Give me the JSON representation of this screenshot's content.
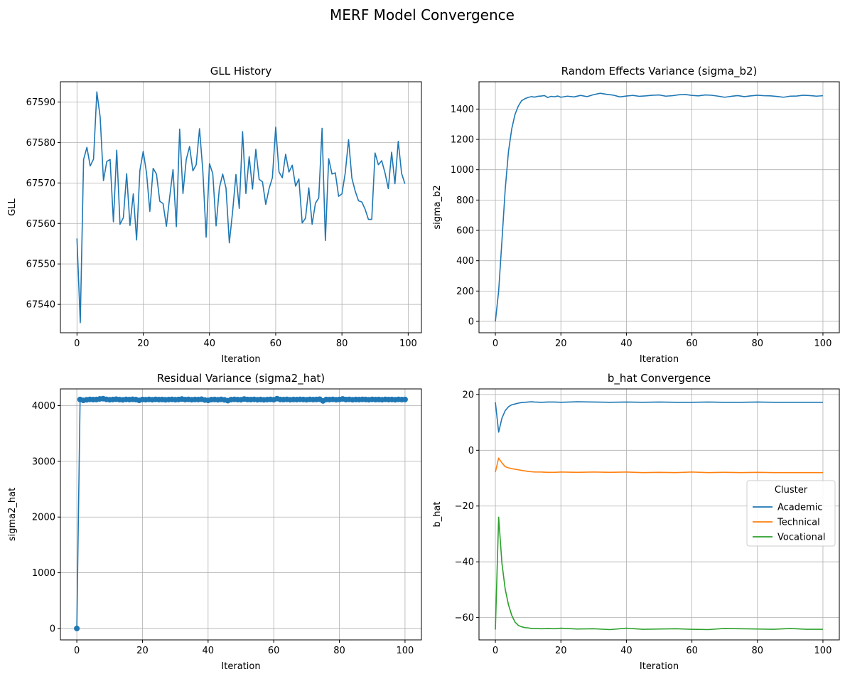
{
  "figure": {
    "title": "MERF Model Convergence"
  },
  "chart_data": [
    {
      "type": "line",
      "title": "GLL History",
      "xlabel": "Iteration",
      "ylabel": "GLL",
      "xlim": [
        -5,
        104
      ],
      "ylim": [
        67533,
        67595
      ],
      "xticks": [
        0,
        20,
        40,
        60,
        80,
        100
      ],
      "yticks": [
        67540,
        67550,
        67560,
        67570,
        67580,
        67590
      ],
      "grid": true,
      "series": [
        {
          "color": "#1f77b4",
          "marker": "none",
          "x": [
            0,
            1,
            2,
            3,
            4,
            5,
            6,
            7,
            8,
            9,
            10,
            11,
            12,
            13,
            14,
            15,
            16,
            17,
            18,
            19,
            20,
            21,
            22,
            23,
            24,
            25,
            26,
            27,
            28,
            29,
            30,
            31,
            32,
            33,
            34,
            35,
            36,
            37,
            38,
            39,
            40,
            41,
            42,
            43,
            44,
            45,
            46,
            47,
            48,
            49,
            50,
            51,
            52,
            53,
            54,
            55,
            56,
            57,
            58,
            59,
            60,
            61,
            62,
            63,
            64,
            65,
            66,
            67,
            68,
            69,
            70,
            71,
            72,
            73,
            74,
            75,
            76,
            77,
            78,
            79,
            80,
            81,
            82,
            83,
            84,
            85,
            86,
            87,
            88,
            89,
            90,
            91,
            92,
            93,
            94,
            95,
            96,
            97,
            98,
            99
          ],
          "values": [
            67556.3,
            67535.5,
            67575.8,
            67578.8,
            67574.2,
            67575.9,
            67592.5,
            67586.3,
            67570.6,
            67575.3,
            67575.8,
            67560.4,
            67578.1,
            67559.8,
            67561.4,
            67572.3,
            67559.5,
            67567.3,
            67555.9,
            67573.1,
            67577.8,
            67572.5,
            67563.0,
            67573.6,
            67572.2,
            67565.5,
            67564.9,
            67559.3,
            67566.6,
            67573.3,
            67559.2,
            67583.3,
            67567.4,
            67575.8,
            67579.0,
            67573.0,
            67574.5,
            67583.4,
            67573.0,
            67556.6,
            67574.8,
            67572.3,
            67559.4,
            67568.8,
            67572.2,
            67568.7,
            67555.2,
            67563.0,
            67572.1,
            67563.7,
            67582.7,
            67567.4,
            67576.5,
            67568.5,
            67578.3,
            67570.9,
            67570.3,
            67564.7,
            67568.6,
            67571.3,
            67583.8,
            67572.7,
            67571.3,
            67577.1,
            67572.7,
            67574.4,
            67569.2,
            67571.0,
            67560.1,
            67561.3,
            67568.8,
            67559.8,
            67565.0,
            67566.3,
            67583.5,
            67555.8,
            67576.0,
            67572.2,
            67572.5,
            67566.7,
            67567.3,
            67572.5,
            67580.7,
            67571.2,
            67568.0,
            67565.6,
            67565.3,
            67563.5,
            67561.0,
            67561.0,
            67577.4,
            67574.5,
            67575.5,
            67572.5,
            67568.6,
            67577.6,
            67569.8,
            67580.3,
            67572.4,
            67569.8
          ]
        }
      ]
    },
    {
      "type": "line",
      "title": "Random Effects Variance (sigma_b2)",
      "xlabel": "Iteration",
      "ylabel": "sigma_b2",
      "xlim": [
        -5,
        105
      ],
      "ylim": [
        -75,
        1580
      ],
      "xticks": [
        0,
        20,
        40,
        60,
        80,
        100
      ],
      "yticks": [
        0,
        200,
        400,
        600,
        800,
        1000,
        1200,
        1400
      ],
      "grid": true,
      "series": [
        {
          "color": "#1f77b4",
          "marker": "none",
          "x": [
            0,
            1,
            2,
            3,
            4,
            5,
            6,
            7,
            8,
            9,
            10,
            11,
            12,
            13,
            14,
            15,
            16,
            17,
            18,
            19,
            20,
            22,
            24,
            26,
            28,
            30,
            32,
            34,
            36,
            38,
            40,
            42,
            44,
            46,
            48,
            50,
            52,
            54,
            56,
            58,
            60,
            62,
            64,
            66,
            68,
            70,
            72,
            74,
            76,
            78,
            80,
            82,
            84,
            86,
            88,
            90,
            92,
            94,
            96,
            98,
            100
          ],
          "values": [
            0,
            200,
            530,
            870,
            1120,
            1270,
            1365,
            1420,
            1455,
            1468,
            1477,
            1482,
            1479,
            1484,
            1486,
            1489,
            1476,
            1484,
            1481,
            1486,
            1478,
            1485,
            1480,
            1490,
            1482,
            1495,
            1504,
            1497,
            1492,
            1480,
            1486,
            1490,
            1484,
            1487,
            1491,
            1493,
            1485,
            1488,
            1494,
            1496,
            1490,
            1487,
            1493,
            1491,
            1485,
            1478,
            1484,
            1489,
            1482,
            1487,
            1491,
            1488,
            1487,
            1483,
            1478,
            1485,
            1486,
            1491,
            1489,
            1485,
            1488
          ]
        }
      ]
    },
    {
      "type": "line",
      "title": "Residual Variance (sigma2_hat)",
      "xlabel": "Iteration",
      "ylabel": "sigma2_hat",
      "xlim": [
        -5,
        105
      ],
      "ylim": [
        -205,
        4300
      ],
      "xticks": [
        0,
        20,
        40,
        60,
        80,
        100
      ],
      "yticks": [
        0,
        1000,
        2000,
        3000,
        4000
      ],
      "grid": true,
      "series": [
        {
          "color": "#1f77b4",
          "marker": "circle",
          "x": [
            0,
            1,
            2,
            3,
            4,
            5,
            6,
            7,
            8,
            9,
            10,
            11,
            12,
            13,
            14,
            15,
            16,
            17,
            18,
            19,
            20,
            21,
            22,
            23,
            24,
            25,
            26,
            27,
            28,
            29,
            30,
            31,
            32,
            33,
            34,
            35,
            36,
            37,
            38,
            39,
            40,
            41,
            42,
            43,
            44,
            45,
            46,
            47,
            48,
            49,
            50,
            51,
            52,
            53,
            54,
            55,
            56,
            57,
            58,
            59,
            60,
            61,
            62,
            63,
            64,
            65,
            66,
            67,
            68,
            69,
            70,
            71,
            72,
            73,
            74,
            75,
            76,
            77,
            78,
            79,
            80,
            81,
            82,
            83,
            84,
            85,
            86,
            87,
            88,
            89,
            90,
            91,
            92,
            93,
            94,
            95,
            96,
            97,
            98,
            99,
            100
          ],
          "values": [
            0,
            4110,
            4095,
            4105,
            4112,
            4108,
            4110,
            4120,
            4125,
            4112,
            4106,
            4110,
            4115,
            4108,
            4104,
            4112,
            4109,
            4113,
            4108,
            4095,
            4110,
            4107,
            4111,
            4106,
            4112,
            4108,
            4110,
            4105,
            4109,
            4112,
            4107,
            4110,
            4118,
            4108,
            4112,
            4106,
            4110,
            4109,
            4115,
            4101,
            4095,
            4108,
            4110,
            4105,
            4112,
            4103,
            4090,
            4108,
            4112,
            4108,
            4106,
            4118,
            4110,
            4108,
            4112,
            4106,
            4110,
            4104,
            4108,
            4112,
            4106,
            4125,
            4110,
            4108,
            4112,
            4106,
            4110,
            4108,
            4112,
            4110,
            4106,
            4112,
            4108,
            4110,
            4115,
            4085,
            4110,
            4108,
            4112,
            4106,
            4110,
            4120,
            4108,
            4112,
            4106,
            4110,
            4108,
            4112,
            4110,
            4106,
            4112,
            4108,
            4110,
            4106,
            4112,
            4108,
            4110,
            4106,
            4112,
            4108,
            4110
          ]
        }
      ]
    },
    {
      "type": "line",
      "title": "b_hat Convergence",
      "xlabel": "Iteration",
      "ylabel": "b_hat",
      "xlim": [
        -5,
        105
      ],
      "ylim": [
        -68,
        22
      ],
      "xticks": [
        0,
        20,
        40,
        60,
        80,
        100
      ],
      "yticks": [
        -60,
        -40,
        -20,
        0,
        20
      ],
      "grid": true,
      "legend": {
        "title": "Cluster",
        "position": "center-right"
      },
      "series": [
        {
          "name": "Academic",
          "color": "#1f77b4",
          "x": [
            0,
            1,
            2,
            3,
            4,
            5,
            6,
            7,
            8,
            9,
            10,
            11,
            12,
            14,
            16,
            18,
            20,
            25,
            30,
            35,
            40,
            45,
            50,
            55,
            60,
            65,
            70,
            75,
            80,
            85,
            90,
            95,
            100
          ],
          "values": [
            17.2,
            6.5,
            11.5,
            14.2,
            15.6,
            16.3,
            16.6,
            16.9,
            17.1,
            17.2,
            17.3,
            17.4,
            17.3,
            17.2,
            17.3,
            17.3,
            17.2,
            17.4,
            17.3,
            17.2,
            17.3,
            17.2,
            17.3,
            17.2,
            17.2,
            17.3,
            17.2,
            17.2,
            17.3,
            17.2,
            17.2,
            17.2,
            17.2
          ]
        },
        {
          "name": "Technical",
          "color": "#ff7f0e",
          "x": [
            0,
            1,
            2,
            3,
            4,
            5,
            6,
            7,
            8,
            9,
            10,
            11,
            12,
            14,
            16,
            18,
            20,
            25,
            30,
            35,
            40,
            45,
            50,
            55,
            60,
            65,
            70,
            75,
            80,
            85,
            90,
            95,
            100
          ],
          "values": [
            -7.8,
            -2.8,
            -4.5,
            -5.9,
            -6.3,
            -6.6,
            -6.8,
            -7.0,
            -7.2,
            -7.4,
            -7.6,
            -7.7,
            -7.8,
            -7.8,
            -7.9,
            -7.9,
            -7.8,
            -7.9,
            -7.8,
            -7.9,
            -7.8,
            -8.0,
            -7.9,
            -8.0,
            -7.8,
            -8.0,
            -7.9,
            -8.0,
            -7.9,
            -8.0,
            -8.0,
            -8.0,
            -8.0
          ]
        },
        {
          "name": "Vocational",
          "color": "#2ca02c",
          "x": [
            0,
            1,
            2,
            3,
            4,
            5,
            6,
            7,
            8,
            9,
            10,
            11,
            12,
            14,
            16,
            18,
            20,
            25,
            30,
            35,
            40,
            45,
            50,
            55,
            60,
            65,
            70,
            75,
            80,
            85,
            90,
            95,
            100
          ],
          "values": [
            -64.3,
            -24.0,
            -40.5,
            -49.8,
            -55.4,
            -59.2,
            -61.6,
            -62.8,
            -63.3,
            -63.6,
            -63.7,
            -63.9,
            -63.9,
            -64.0,
            -63.9,
            -64.0,
            -63.8,
            -64.1,
            -64.0,
            -64.3,
            -63.8,
            -64.2,
            -64.1,
            -64.0,
            -64.2,
            -64.3,
            -63.9,
            -64.0,
            -64.1,
            -64.2,
            -63.9,
            -64.2,
            -64.2
          ]
        }
      ]
    }
  ]
}
